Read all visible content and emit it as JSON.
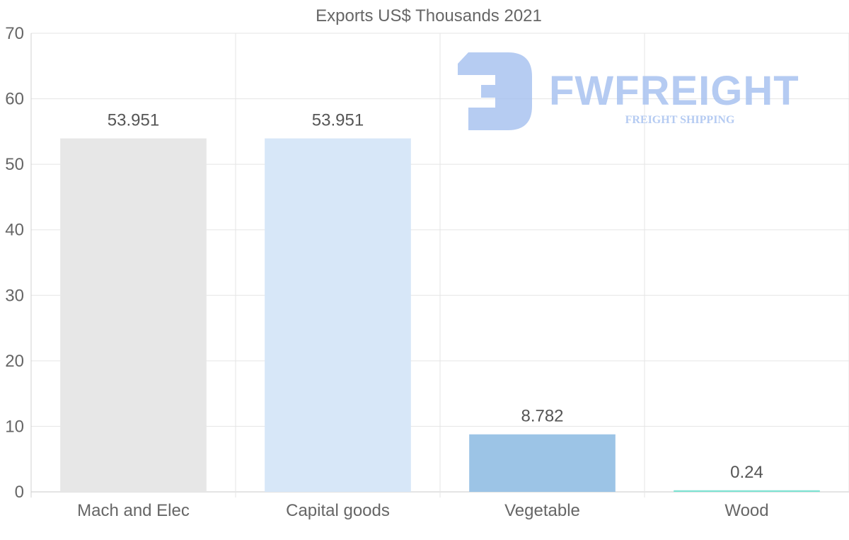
{
  "chart_data": {
    "type": "bar",
    "title": "Exports US$ Thousands 2021",
    "categories": [
      "Mach and Elec",
      "Capital goods",
      "Vegetable",
      "Wood"
    ],
    "values": [
      53.951,
      53.951,
      8.782,
      0.24
    ],
    "value_labels": [
      "53.951",
      "53.951",
      "8.782",
      "0.24"
    ],
    "bar_colors": [
      "#e7e7e7",
      "#d7e7f8",
      "#9cc4e6",
      "#7fe3d3"
    ],
    "ylim": [
      0,
      70
    ],
    "yticks": [
      0,
      10,
      20,
      30,
      40,
      50,
      60,
      70
    ],
    "xlabel": "",
    "ylabel": "",
    "grid": true,
    "legend": "none"
  },
  "watermark": {
    "name": "FWFREIGHT",
    "tagline": "FREIGHT SHIPPING",
    "color": "#a9c3f0"
  }
}
